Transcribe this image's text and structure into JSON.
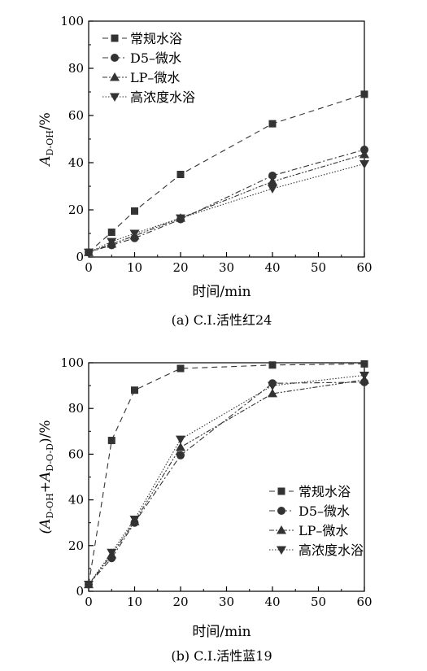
{
  "chart_data": [
    {
      "type": "line",
      "caption": "(a) C.I.活性红24",
      "xlabel": "时间/min",
      "ylabel": "A",
      "ylabel_sub": "D-OH",
      "ylabel_unit": "/%",
      "xlim": [
        0,
        60
      ],
      "ylim": [
        0,
        100
      ],
      "x_ticks": [
        "0",
        "10",
        "20",
        "30",
        "40",
        "50",
        "60"
      ],
      "y_ticks": [
        "0",
        "20",
        "40",
        "60",
        "80",
        "100"
      ],
      "x": [
        0,
        5,
        10,
        20,
        40,
        60
      ],
      "legend_position": "top-left",
      "series": [
        {
          "name": "常规水浴",
          "marker": "square",
          "dash": "7,5",
          "values": [
            2,
            10.5,
            19.5,
            35,
            56.5,
            69
          ]
        },
        {
          "name": "D5–微水",
          "marker": "circle",
          "dash": "7,3,2,3",
          "values": [
            2,
            5,
            8,
            16,
            34.5,
            45.5
          ]
        },
        {
          "name": "LP–微水",
          "marker": "triangle-up",
          "dash": "6,2,2,2,2,2",
          "values": [
            2,
            5.5,
            9,
            16.5,
            32,
            43.5
          ]
        },
        {
          "name": "高浓度水浴",
          "marker": "triangle-down",
          "dash": "1.5,2",
          "values": [
            2,
            6.5,
            10,
            16.5,
            29,
            39.5
          ]
        }
      ]
    },
    {
      "type": "line",
      "caption": "(b) C.I.活性蓝19",
      "xlabel": "时间/min",
      "ylabel": "(A",
      "ylabel_sub": "D-OH",
      "ylabel_mid": "+A",
      "ylabel_sub2": "D-O-D",
      "ylabel_unit": ")/%",
      "xlim": [
        0,
        60
      ],
      "ylim": [
        0,
        100
      ],
      "x_ticks": [
        "0",
        "10",
        "20",
        "30",
        "40",
        "50",
        "60"
      ],
      "y_ticks": [
        "0",
        "20",
        "40",
        "60",
        "80",
        "100"
      ],
      "x": [
        0,
        5,
        10,
        20,
        40,
        60
      ],
      "legend_position": "bottom-right",
      "series": [
        {
          "name": "常规水浴",
          "marker": "square",
          "dash": "7,5",
          "values": [
            3,
            66,
            88,
            97.5,
            99,
            99.5
          ]
        },
        {
          "name": "D5–微水",
          "marker": "circle",
          "dash": "7,3,2,3",
          "values": [
            3,
            14.5,
            30,
            59.5,
            91,
            91.5
          ]
        },
        {
          "name": "LP–微水",
          "marker": "triangle-up",
          "dash": "6,2,2,2,2,2",
          "values": [
            3,
            16,
            30.5,
            63,
            86.5,
            92.5
          ]
        },
        {
          "name": "高浓度水浴",
          "marker": "triangle-down",
          "dash": "1.5,2",
          "values": [
            3,
            17,
            31.5,
            66.5,
            90,
            94.5
          ]
        }
      ]
    }
  ]
}
